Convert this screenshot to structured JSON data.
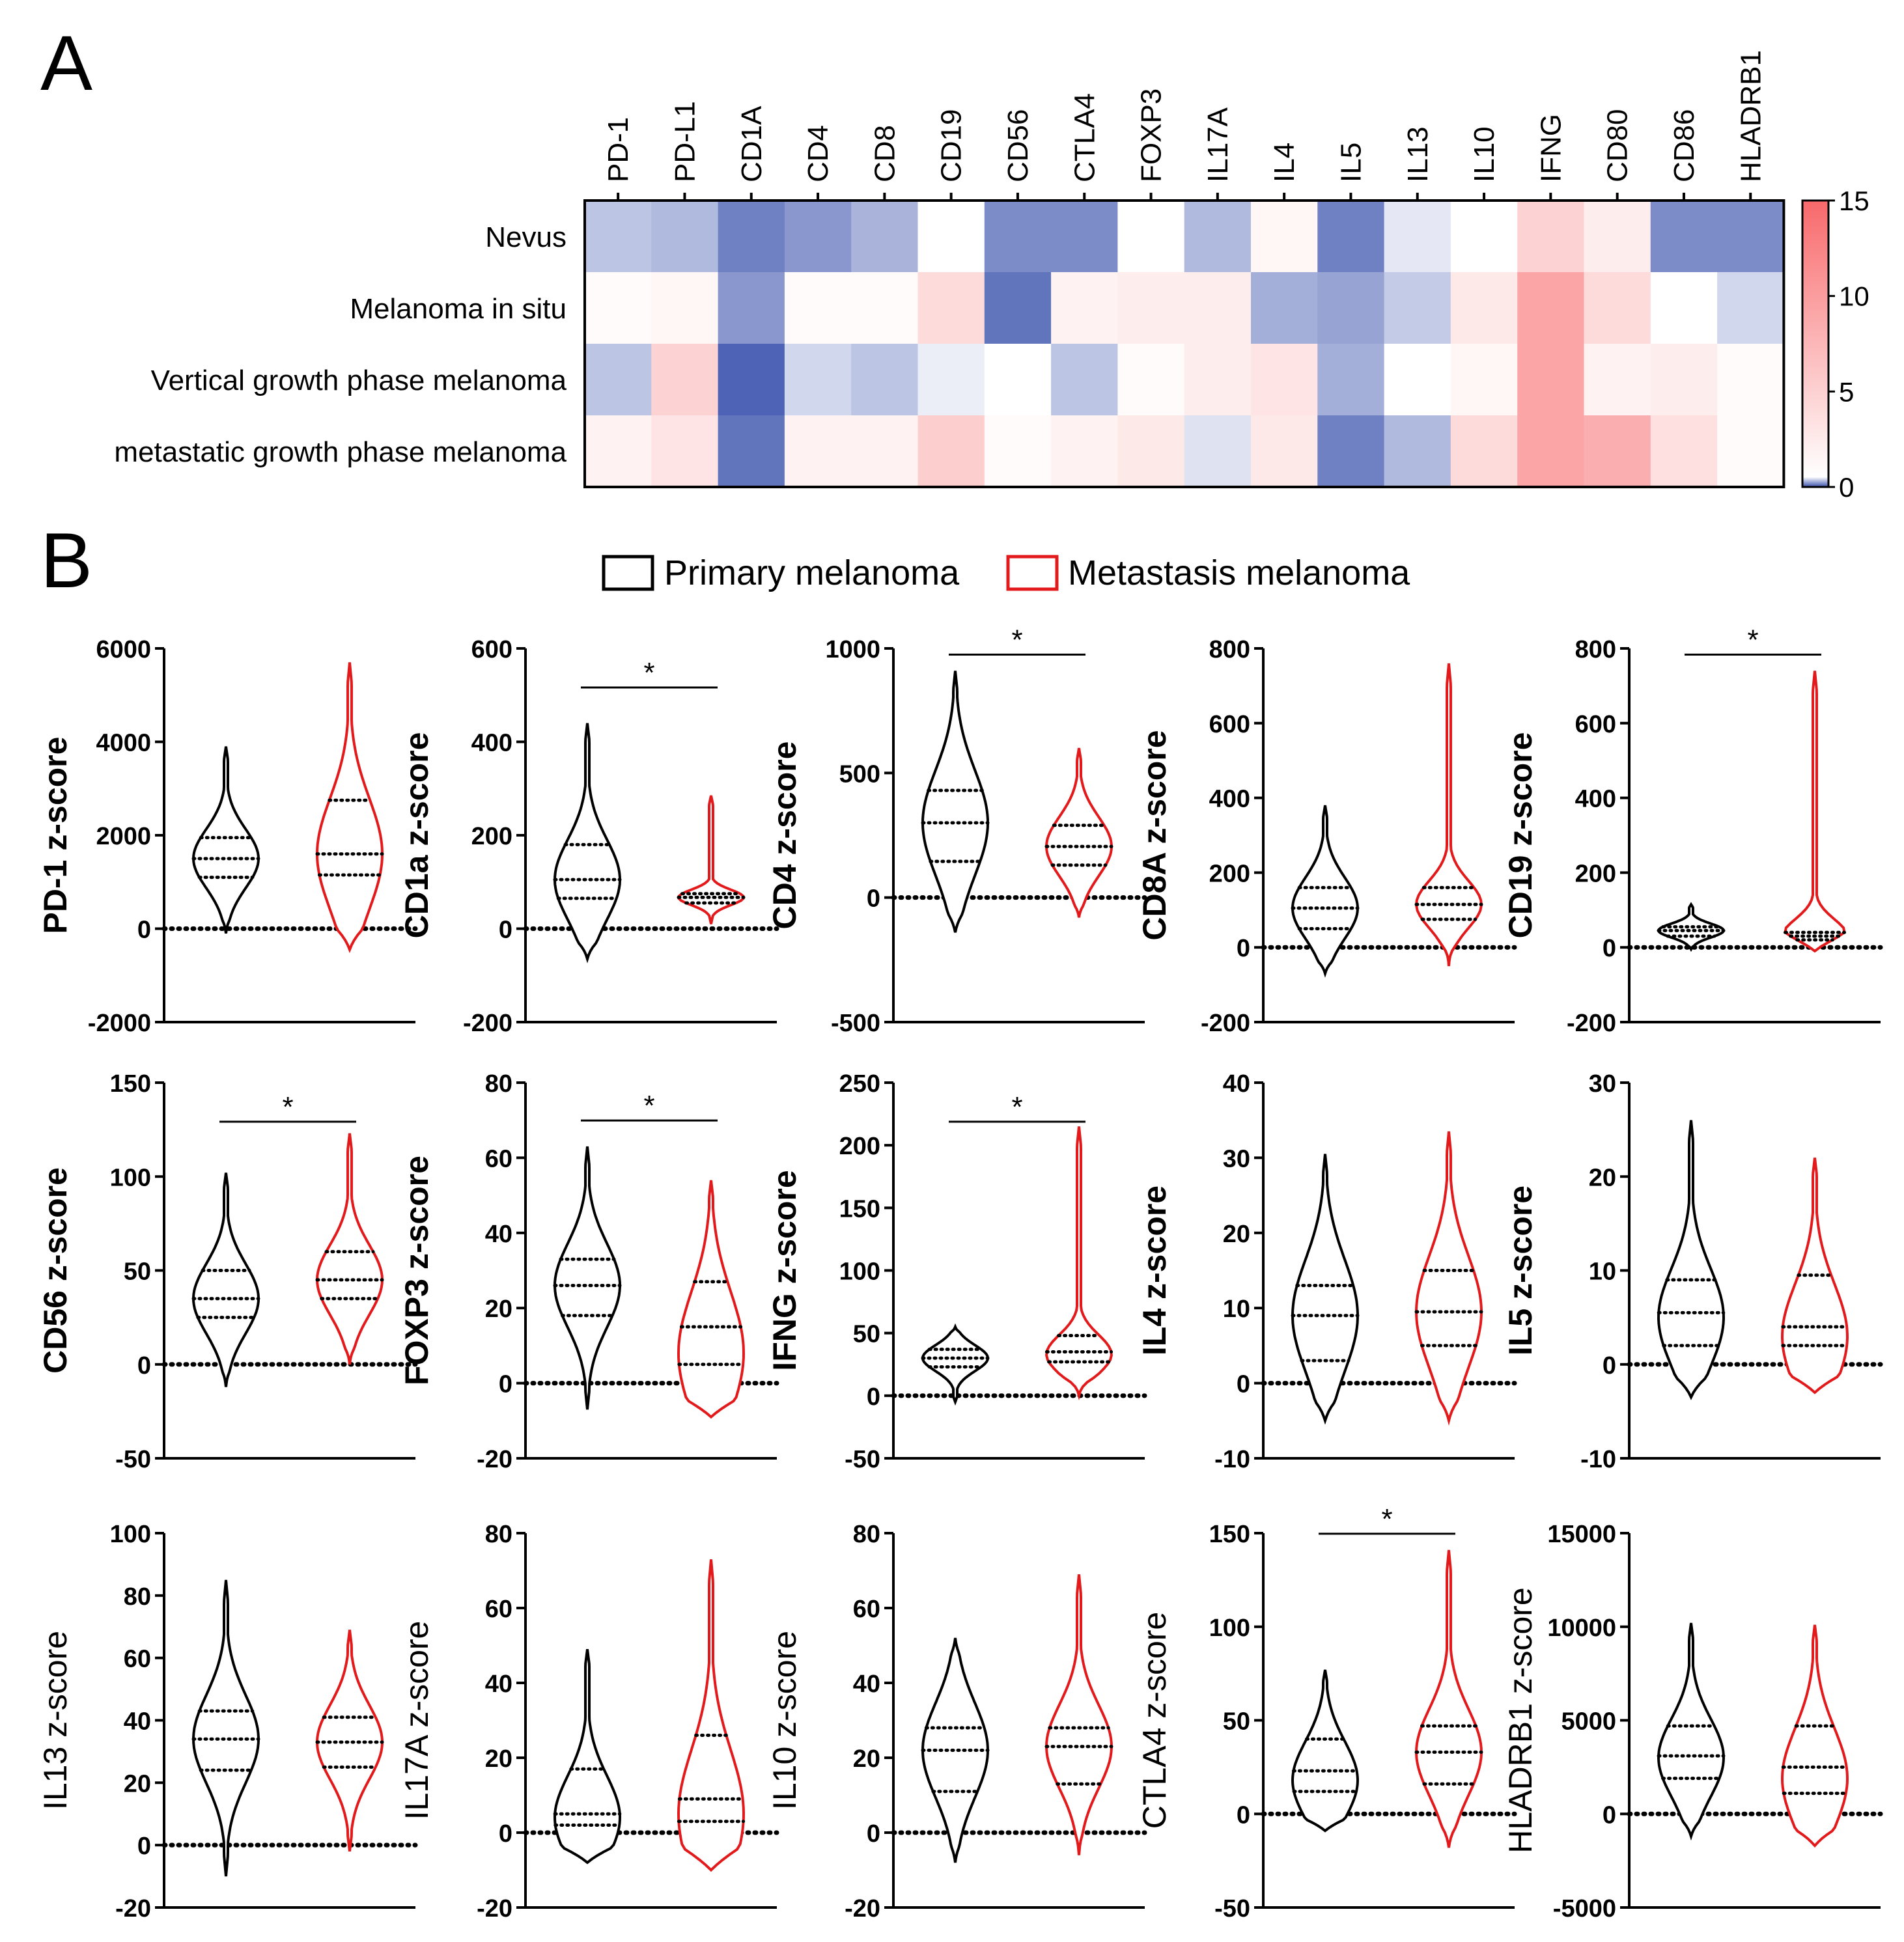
{
  "panels": {
    "a": "A",
    "b": "B"
  },
  "heatmap": {
    "type": "heatmap",
    "columns": [
      "PD-1",
      "PD-L1",
      "CD1A",
      "CD4",
      "CD8",
      "CD19",
      "CD56",
      "CTLA4",
      "FOXP3",
      "IL17A",
      "IL4",
      "IL5",
      "IL13",
      "IL10",
      "IFNG",
      "CD80",
      "CD86",
      "HLADRB1"
    ],
    "rows": [
      "Nevus",
      "Melanoma in situ",
      "Vertical growth phase melanoma",
      "metastatic growth phase  melanoma"
    ],
    "values": [
      [
        -5,
        -6,
        -11,
        -9,
        -6.5,
        0,
        -10,
        -10,
        0,
        -6,
        1,
        -11,
        -2,
        0,
        5,
        2,
        -10,
        -10
      ],
      [
        0.5,
        1,
        -9,
        0.5,
        0.5,
        4,
        -12,
        1.5,
        2,
        2,
        -7,
        -8,
        -4.5,
        2.5,
        10,
        4,
        0,
        -3.5
      ],
      [
        -5,
        5,
        -13.5,
        -3.5,
        -5,
        -1.5,
        0,
        -5,
        0.5,
        2,
        3,
        -7,
        0,
        1,
        10,
        1.5,
        2,
        0.5
      ],
      [
        1.5,
        3,
        -12,
        1.5,
        1.5,
        5.5,
        0.5,
        1.5,
        2.5,
        -2.5,
        2.5,
        -11,
        -6,
        4,
        10,
        9,
        3.5,
        0.5
      ]
    ],
    "colorbar": {
      "ticks": [
        "15",
        "10",
        "5",
        "0"
      ],
      "min_color": "#3a52ad",
      "mid_color": "#ffffff",
      "max_color": "#f8696b"
    }
  },
  "legend": {
    "primary": "Primary melanoma",
    "metastasis": "Metastasis melanoma",
    "primary_color": "#000000",
    "metastasis_color": "#e31a1c"
  },
  "chart_data": [
    {
      "type": "violin",
      "ylabel": "PD-1 z-score",
      "bold": true,
      "ylim": [
        -2000,
        6000
      ],
      "ticks": [
        6000,
        4000,
        2000,
        0,
        -2000
      ],
      "significant": false,
      "series": [
        {
          "name": "Primary melanoma",
          "min": -100,
          "max": 3900,
          "q1": 1100,
          "median": 1500,
          "q3": 1950,
          "peak": 1500
        },
        {
          "name": "Metastasis melanoma",
          "min": -450,
          "max": 5700,
          "q1": 1150,
          "median": 1600,
          "q3": 2750,
          "peak": 1600
        }
      ]
    },
    {
      "type": "violin",
      "ylabel": "CD1a z-score",
      "bold": true,
      "ylim": [
        -200,
        600
      ],
      "ticks": [
        600,
        400,
        200,
        0,
        -200
      ],
      "significant": true,
      "series": [
        {
          "name": "Primary melanoma",
          "min": -65,
          "max": 440,
          "q1": 65,
          "median": 105,
          "q3": 180,
          "peak": 105
        },
        {
          "name": "Metastasis melanoma",
          "min": 10,
          "max": 285,
          "q1": 55,
          "median": 67,
          "q3": 75,
          "peak": 67
        }
      ]
    },
    {
      "type": "violin",
      "ylabel": "CD4 z-score",
      "bold": true,
      "ylim": [
        -500,
        1000
      ],
      "ticks": [
        1000,
        500,
        0,
        -500
      ],
      "significant": true,
      "series": [
        {
          "name": "Primary melanoma",
          "min": -140,
          "max": 910,
          "q1": 145,
          "median": 300,
          "q3": 430,
          "peak": 300
        },
        {
          "name": "Metastasis melanoma",
          "min": -80,
          "max": 600,
          "q1": 130,
          "median": 205,
          "q3": 290,
          "peak": 205
        }
      ]
    },
    {
      "type": "violin",
      "ylabel": "CD8A z-score",
      "bold": true,
      "ylim": [
        -200,
        800
      ],
      "ticks": [
        800,
        600,
        400,
        200,
        0,
        -200
      ],
      "significant": false,
      "series": [
        {
          "name": "Primary melanoma",
          "min": -70,
          "max": 380,
          "q1": 50,
          "median": 105,
          "q3": 160,
          "peak": 105
        },
        {
          "name": "Metastasis melanoma",
          "min": -50,
          "max": 760,
          "q1": 75,
          "median": 115,
          "q3": 160,
          "peak": 115
        }
      ]
    },
    {
      "type": "violin",
      "ylabel": "CD19 z-score",
      "bold": true,
      "ylim": [
        -200,
        800
      ],
      "ticks": [
        800,
        600,
        400,
        200,
        0,
        -200
      ],
      "significant": true,
      "series": [
        {
          "name": "Primary melanoma",
          "min": -5,
          "max": 115,
          "q1": 30,
          "median": 45,
          "q3": 55,
          "peak": 45
        },
        {
          "name": "Metastasis melanoma",
          "min": -10,
          "max": 740,
          "q1": 20,
          "median": 30,
          "q3": 40,
          "peak": 30
        }
      ]
    },
    {
      "type": "violin",
      "ylabel": "CD56 z-score",
      "bold": true,
      "ylim": [
        -50,
        150
      ],
      "ticks": [
        150,
        100,
        50,
        0,
        -50
      ],
      "significant": true,
      "series": [
        {
          "name": "Primary melanoma",
          "min": -12,
          "max": 102,
          "q1": 25,
          "median": 35,
          "q3": 50,
          "peak": 35
        },
        {
          "name": "Metastasis melanoma",
          "min": 0,
          "max": 123,
          "q1": 35,
          "median": 45,
          "q3": 60,
          "peak": 45
        }
      ]
    },
    {
      "type": "violin",
      "ylabel": "FOXP3 z-score",
      "bold": true,
      "ylim": [
        -20,
        80
      ],
      "ticks": [
        80,
        60,
        40,
        20,
        0,
        -20
      ],
      "significant": true,
      "series": [
        {
          "name": "Primary melanoma",
          "min": -7,
          "max": 63,
          "q1": 18,
          "median": 26,
          "q3": 33,
          "peak": 26
        },
        {
          "name": "Metastasis melanoma",
          "min": -9,
          "max": 54,
          "q1": 5,
          "median": 15,
          "q3": 27,
          "peak": 8
        }
      ]
    },
    {
      "type": "violin",
      "ylabel": "IFNG z-score",
      "bold": true,
      "ylim": [
        -50,
        250
      ],
      "ticks": [
        250,
        200,
        150,
        100,
        50,
        0,
        -50
      ],
      "significant": true,
      "series": [
        {
          "name": "Primary melanoma",
          "min": -5,
          "max": 55,
          "q1": 23,
          "median": 30,
          "q3": 37,
          "peak": 30
        },
        {
          "name": "Metastasis melanoma",
          "min": 0,
          "max": 215,
          "q1": 27,
          "median": 35,
          "q3": 48,
          "peak": 33
        }
      ]
    },
    {
      "type": "violin",
      "ylabel": "IL4 z-score",
      "bold": true,
      "ylim": [
        -10,
        40
      ],
      "ticks": [
        40,
        30,
        20,
        10,
        0,
        -10
      ],
      "significant": false,
      "series": [
        {
          "name": "Primary melanoma",
          "min": -5,
          "max": 30.5,
          "q1": 3,
          "median": 9,
          "q3": 13,
          "peak": 9
        },
        {
          "name": "Metastasis melanoma",
          "min": -5,
          "max": 33.5,
          "q1": 5,
          "median": 9.5,
          "q3": 15,
          "peak": 9.5
        }
      ]
    },
    {
      "type": "violin",
      "ylabel": "IL5 z-score",
      "bold": true,
      "ylim": [
        -10,
        30
      ],
      "ticks": [
        30,
        20,
        10,
        0,
        -10
      ],
      "significant": false,
      "series": [
        {
          "name": "Primary melanoma",
          "min": -3.5,
          "max": 26,
          "q1": 2,
          "median": 5.5,
          "q3": 9,
          "peak": 5
        },
        {
          "name": "Metastasis melanoma",
          "min": -3,
          "max": 22,
          "q1": 2,
          "median": 4,
          "q3": 9.5,
          "peak": 3
        }
      ]
    },
    {
      "type": "violin",
      "ylabel": "IL13 z-score",
      "bold": false,
      "ylim": [
        -20,
        100
      ],
      "ticks": [
        100,
        80,
        60,
        40,
        20,
        0,
        -20
      ],
      "significant": false,
      "series": [
        {
          "name": "Primary melanoma",
          "min": -10,
          "max": 85,
          "q1": 24,
          "median": 34,
          "q3": 43,
          "peak": 34
        },
        {
          "name": "Metastasis melanoma",
          "min": -2,
          "max": 69,
          "q1": 25,
          "median": 33,
          "q3": 41,
          "peak": 33
        }
      ]
    },
    {
      "type": "violin",
      "ylabel": "IL17A z-score",
      "bold": false,
      "ylim": [
        -20,
        80
      ],
      "ticks": [
        80,
        60,
        40,
        20,
        0,
        -20
      ],
      "significant": false,
      "series": [
        {
          "name": "Primary melanoma",
          "min": -8,
          "max": 49,
          "q1": 2,
          "median": 5,
          "q3": 17,
          "peak": 4
        },
        {
          "name": "Metastasis melanoma",
          "min": -10,
          "max": 73,
          "q1": 3,
          "median": 9,
          "q3": 26,
          "peak": 5
        }
      ]
    },
    {
      "type": "violin",
      "ylabel": "IL10 z-score",
      "bold": false,
      "ylim": [
        -20,
        80
      ],
      "ticks": [
        80,
        60,
        40,
        20,
        0,
        -20
      ],
      "significant": false,
      "series": [
        {
          "name": "Primary melanoma",
          "min": -8,
          "max": 52,
          "q1": 11,
          "median": 22,
          "q3": 28,
          "peak": 22
        },
        {
          "name": "Metastasis melanoma",
          "min": -6,
          "max": 69,
          "q1": 13,
          "median": 23,
          "q3": 28,
          "peak": 23
        }
      ]
    },
    {
      "type": "violin",
      "ylabel": "CTLA4 z-score",
      "bold": false,
      "ylim": [
        -50,
        150
      ],
      "ticks": [
        150,
        100,
        50,
        0,
        -50
      ],
      "significant": true,
      "series": [
        {
          "name": "Primary melanoma",
          "min": -9,
          "max": 77,
          "q1": 12,
          "median": 23,
          "q3": 40,
          "peak": 18
        },
        {
          "name": "Metastasis melanoma",
          "min": -18,
          "max": 141,
          "q1": 16,
          "median": 33,
          "q3": 47,
          "peak": 33
        }
      ]
    },
    {
      "type": "violin",
      "ylabel": "HLADRB1 z-score",
      "bold": false,
      "ylim": [
        -5000,
        15000
      ],
      "ticks": [
        15000,
        10000,
        5000,
        0,
        -5000
      ],
      "significant": false,
      "series": [
        {
          "name": "Primary melanoma",
          "min": -1200,
          "max": 10200,
          "q1": 1900,
          "median": 3100,
          "q3": 4700,
          "peak": 3000
        },
        {
          "name": "Metastasis melanoma",
          "min": -1700,
          "max": 10100,
          "q1": 1100,
          "median": 2500,
          "q3": 4700,
          "peak": 1900
        }
      ]
    }
  ]
}
